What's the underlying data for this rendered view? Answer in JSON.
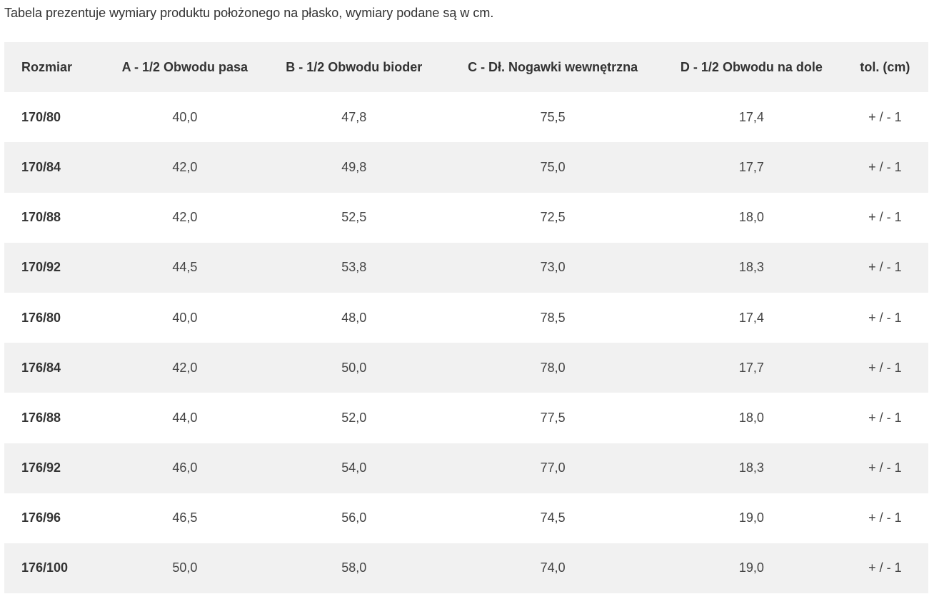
{
  "intro": "Tabela prezentuje wymiary produktu położonego na płasko, wymiary podane są w cm.",
  "table": {
    "headers": [
      "Rozmiar",
      "A - 1/2 Obwodu pasa",
      "B - 1/2 Obwodu bioder",
      "C - Dł. Nogawki wewnętrzna",
      "D - 1/2 Obwodu na dole",
      "tol. (cm)"
    ],
    "rows": [
      [
        "170/80",
        "40,0",
        "47,8",
        "75,5",
        "17,4",
        "+ / - 1"
      ],
      [
        "170/84",
        "42,0",
        "49,8",
        "75,0",
        "17,7",
        "+ / - 1"
      ],
      [
        "170/88",
        "42,0",
        "52,5",
        "72,5",
        "18,0",
        "+ / - 1"
      ],
      [
        "170/92",
        "44,5",
        "53,8",
        "73,0",
        "18,3",
        "+ / - 1"
      ],
      [
        "176/80",
        "40,0",
        "48,0",
        "78,5",
        "17,4",
        "+ / - 1"
      ],
      [
        "176/84",
        "42,0",
        "50,0",
        "78,0",
        "17,7",
        "+ / - 1"
      ],
      [
        "176/88",
        "44,0",
        "52,0",
        "77,5",
        "18,0",
        "+ / - 1"
      ],
      [
        "176/92",
        "46,0",
        "54,0",
        "77,0",
        "18,3",
        "+ / - 1"
      ],
      [
        "176/96",
        "46,5",
        "56,0",
        "74,5",
        "19,0",
        "+ / - 1"
      ],
      [
        "176/100",
        "50,0",
        "58,0",
        "74,0",
        "19,0",
        "+ / - 1"
      ]
    ]
  },
  "colors": {
    "stripe": "#f1f1f1",
    "text": "#333333"
  }
}
